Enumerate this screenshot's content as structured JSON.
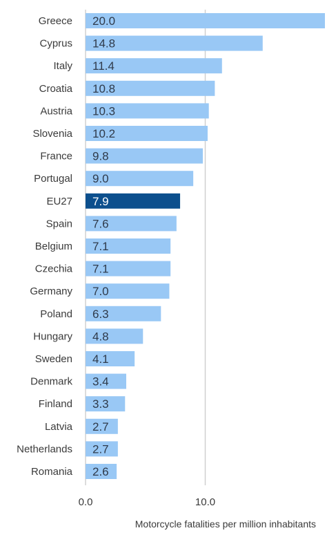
{
  "chart_data": {
    "type": "bar",
    "orientation": "horizontal",
    "categories": [
      "Greece",
      "Cyprus",
      "Italy",
      "Croatia",
      "Austria",
      "Slovenia",
      "France",
      "Portugal",
      "EU27",
      "Spain",
      "Belgium",
      "Czechia",
      "Germany",
      "Poland",
      "Hungary",
      "Sweden",
      "Denmark",
      "Finland",
      "Latvia",
      "Netherlands",
      "Romania"
    ],
    "values": [
      20.0,
      14.8,
      11.4,
      10.8,
      10.3,
      10.2,
      9.8,
      9.0,
      7.9,
      7.6,
      7.1,
      7.1,
      7.0,
      6.3,
      4.8,
      4.1,
      3.4,
      3.3,
      2.7,
      2.7,
      2.6
    ],
    "value_labels": [
      "20.0",
      "14.8",
      "11.4",
      "10.8",
      "10.3",
      "10.2",
      "9.8",
      "9.0",
      "7.9",
      "7.6",
      "7.1",
      "7.1",
      "7.0",
      "6.3",
      "4.8",
      "4.1",
      "3.4",
      "3.3",
      "2.7",
      "2.7",
      "2.6"
    ],
    "highlight": "EU27",
    "xlabel": "Motorcycle fatalities per million inhabitants",
    "ylabel": "",
    "xlim": [
      0,
      20
    ],
    "xticks": [
      0,
      10
    ],
    "xtick_labels": [
      "0.0",
      "10.0"
    ],
    "grid": "vertical lines at x ticks",
    "legend": "none",
    "colors": {
      "bar": "#99c8f5",
      "bar_highlight": "#0c4f8d",
      "value_text": "#2f3a4a",
      "value_text_highlight": "#ffffff",
      "gridline": "#d0d0d0"
    }
  }
}
